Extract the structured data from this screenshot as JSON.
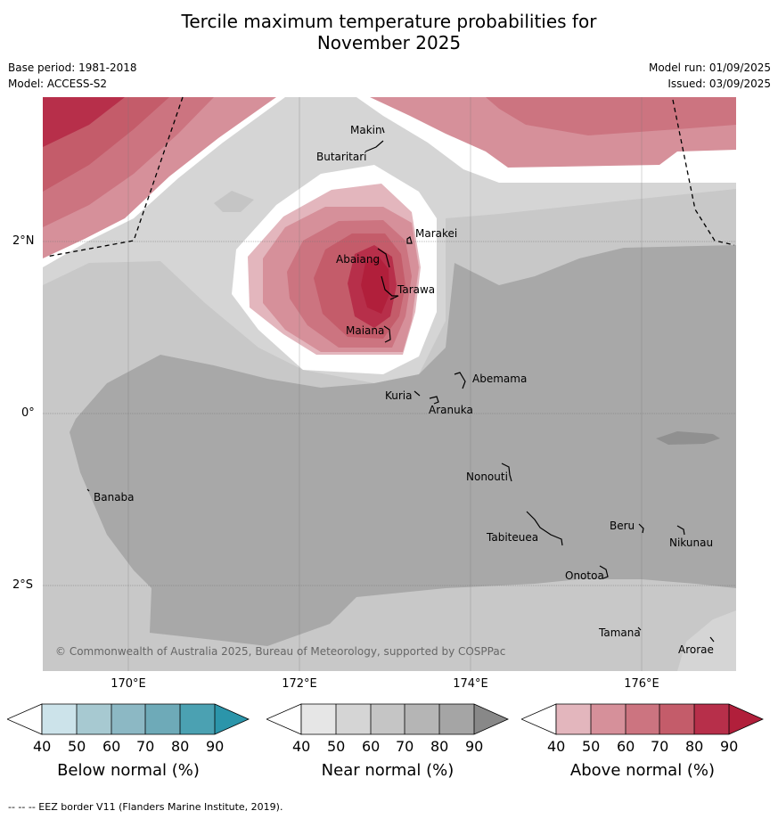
{
  "title_line1": "Tercile maximum temperature probabilities for",
  "title_line2": "November 2025",
  "base_period": "Base period: 1981-2018",
  "model": "Model: ACCESS-S2",
  "model_run": "Model run: 01/09/2025",
  "issued": "Issued: 03/09/2025",
  "lat_labels": [
    "2°N",
    "0°",
    "2°S"
  ],
  "lon_labels": [
    "170°E",
    "172°E",
    "174°E",
    "176°E"
  ],
  "places": [
    {
      "name": "Makin"
    },
    {
      "name": "Butaritari"
    },
    {
      "name": "Marakei"
    },
    {
      "name": "Abaiang"
    },
    {
      "name": "Tarawa"
    },
    {
      "name": "Maiana"
    },
    {
      "name": "Abemama"
    },
    {
      "name": "Kuria"
    },
    {
      "name": "Aranuka"
    },
    {
      "name": "Nonouti"
    },
    {
      "name": "Banaba"
    },
    {
      "name": "Beru"
    },
    {
      "name": "Tabiteuea"
    },
    {
      "name": "Nikunau"
    },
    {
      "name": "Onotoa"
    },
    {
      "name": "Tamana"
    },
    {
      "name": "Arorae"
    }
  ],
  "copyright": "© Commonwealth of Australia 2025, Bureau of Meteorology, supported by COSPPac",
  "colorbars": [
    {
      "title": "Below normal (%)",
      "ticks": [
        "40",
        "50",
        "60",
        "70",
        "80",
        "90"
      ],
      "colors": [
        "#cce3ea",
        "#a7c9d1",
        "#8cb8c4",
        "#6eaab8",
        "#4ba1b2",
        "#2b95aa"
      ]
    },
    {
      "title": "Near normal (%)",
      "ticks": [
        "40",
        "50",
        "60",
        "70",
        "80",
        "90"
      ],
      "colors": [
        "#e6e6e6",
        "#d5d5d5",
        "#c5c5c5",
        "#b5b5b5",
        "#a5a5a5",
        "#888888"
      ]
    },
    {
      "title": "Above normal (%)",
      "ticks": [
        "40",
        "50",
        "60",
        "70",
        "80",
        "90"
      ],
      "colors": [
        "#e3b6bd",
        "#d6909a",
        "#cc7480",
        "#c45c6a",
        "#b72f4a",
        "#b11f3b"
      ]
    }
  ],
  "footer": "--  --  -- EEZ border V11 (Flanders Marine Institute, 2019)."
}
